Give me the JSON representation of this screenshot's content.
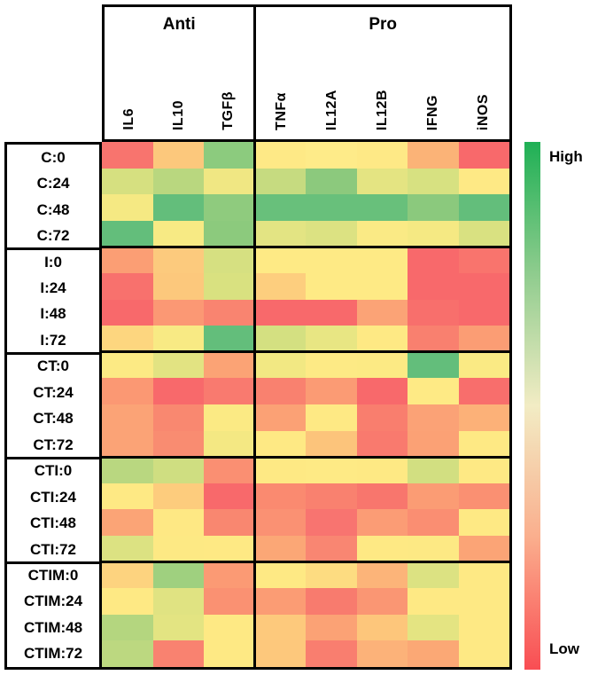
{
  "legend": {
    "high_label": "High",
    "low_label": "Low",
    "gradient": [
      "#1FB055",
      "#8FCC8E",
      "#F2ECC4",
      "#FAAE8D",
      "#F94D53"
    ]
  },
  "chart_data": {
    "type": "heatmap",
    "title": "",
    "col_groups": [
      {
        "label": "Anti",
        "columns": [
          "IL6",
          "IL10",
          "TGFβ"
        ]
      },
      {
        "label": "Pro",
        "columns": [
          "TNFα",
          "IL12A",
          "IL12B",
          "IFNG",
          "iNOS"
        ]
      }
    ],
    "columns": [
      "IL6",
      "IL10",
      "TGFβ",
      "TNFα",
      "IL12A",
      "IL12B",
      "IFNG",
      "iNOS"
    ],
    "rows": [
      "C:0",
      "C:24",
      "C:48",
      "C:72",
      "I:0",
      "I:24",
      "I:48",
      "I:72",
      "CT:0",
      "CT:24",
      "CT:48",
      "CT:72",
      "CTI:0",
      "CTI:24",
      "CTI:48",
      "CTI:72",
      "CTIM:0",
      "CTIM:24",
      "CTIM:48",
      "CTIM:72"
    ],
    "row_block_size": 4,
    "scale": {
      "high": "green",
      "low": "red"
    },
    "cell_colors": [
      [
        "#F8746E",
        "#FCC87C",
        "#8CCB7E",
        "#FEE986",
        "#FEEB89",
        "#FEE986",
        "#FBB377",
        "#F8696B"
      ],
      [
        "#D6E080",
        "#B9D77F",
        "#F0E783",
        "#C6DB80",
        "#8CC97D",
        "#E4E482",
        "#D7E181",
        "#FEE985"
      ],
      [
        "#F5E983",
        "#63BE7B",
        "#8FCB7E",
        "#68C07B",
        "#68C07B",
        "#68C07B",
        "#8BC97D",
        "#63BE7B"
      ],
      [
        "#63BE7B",
        "#F7EA84",
        "#8CCA7D",
        "#E3E483",
        "#DCE282",
        "#FAEA85",
        "#F5E983",
        "#D9E181"
      ],
      [
        "#FB9E74",
        "#FCCA7D",
        "#D6E081",
        "#FEEA85",
        "#FEEA85",
        "#FEEA85",
        "#F8696B",
        "#F9746D"
      ],
      [
        "#F8716D",
        "#FCC87C",
        "#D9E180",
        "#FDCE7E",
        "#FEEA85",
        "#FEEA85",
        "#F8696B",
        "#F8696B"
      ],
      [
        "#F8696B",
        "#FB9874",
        "#F98470",
        "#F8696B",
        "#F8696B",
        "#FBA376",
        "#F86F6C",
        "#F8696B"
      ],
      [
        "#FDD67F",
        "#F8EA84",
        "#63BE7B",
        "#D4E081",
        "#E8E683",
        "#FEE984",
        "#F9806F",
        "#FB9D74"
      ],
      [
        "#FCEA84",
        "#E2E382",
        "#FBA375",
        "#F2E883",
        "#FDEA85",
        "#FCEA84",
        "#63BE7B",
        "#FAEA84"
      ],
      [
        "#FB9873",
        "#F8696B",
        "#F97A6F",
        "#F9816F",
        "#FB9B74",
        "#F8696B",
        "#FEEA85",
        "#F86E6C"
      ],
      [
        "#FBA376",
        "#F98870",
        "#FBEA84",
        "#FBA175",
        "#FEE984",
        "#F97E6E",
        "#FBA276",
        "#FCB178"
      ],
      [
        "#FBA376",
        "#F98C71",
        "#F4E883",
        "#FEE984",
        "#FCC47B",
        "#F97A6E",
        "#FBA175",
        "#FEE984"
      ],
      [
        "#B9D780",
        "#CFDE81",
        "#FA8F72",
        "#FEE984",
        "#FEEA85",
        "#FEE984",
        "#D2DF81",
        "#FEE984"
      ],
      [
        "#FEE984",
        "#FDCC7D",
        "#F8696B",
        "#FA8A70",
        "#F9816F",
        "#F8766D",
        "#FB9C74",
        "#FA9072"
      ],
      [
        "#FBA476",
        "#FEE884",
        "#F98770",
        "#FA9173",
        "#F87470",
        "#FB9C75",
        "#FA8E72",
        "#FEE984"
      ],
      [
        "#DCE282",
        "#FDE984",
        "#FEE984",
        "#FBA776",
        "#F98672",
        "#FEE984",
        "#FDE984",
        "#FBA476"
      ],
      [
        "#FDD37F",
        "#9FD07F",
        "#FB9A74",
        "#FEE984",
        "#FDDC81",
        "#FCB479",
        "#DCE282",
        "#FEE984"
      ],
      [
        "#FEE984",
        "#E0E382",
        "#FA9172",
        "#FB9C74",
        "#F87B6E",
        "#FA9673",
        "#FEE984",
        "#FEE984"
      ],
      [
        "#B4D67F",
        "#E3E482",
        "#FEE984",
        "#FDC97C",
        "#FBA275",
        "#FDC67B",
        "#E4E482",
        "#FEE984"
      ],
      [
        "#BCD880",
        "#F98270",
        "#FEE984",
        "#FDC87C",
        "#F97E6F",
        "#FCB279",
        "#FBA875",
        "#FEE984"
      ]
    ]
  }
}
